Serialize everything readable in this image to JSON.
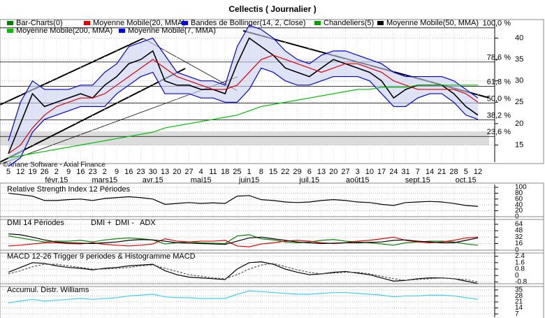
{
  "header": {
    "title": "Cellectis  ( Journalier )",
    "copyright": "©Ariane Software - Axial Finance"
  },
  "chart_data": [
    {
      "type": "line",
      "panel": "price",
      "categories": [
        "5",
        "12",
        "19",
        "26",
        "2",
        "9",
        "16",
        "23",
        "2",
        "9",
        "16",
        "23",
        "30",
        "13",
        "20",
        "27",
        "4",
        "11",
        "18",
        "25",
        "1",
        "8",
        "15",
        "22",
        "29",
        "6",
        "13",
        "20",
        "27",
        "3",
        "10",
        "17",
        "24",
        "31",
        "7",
        "14",
        "21",
        "28",
        "5",
        "12"
      ],
      "month_labels": [
        {
          "label": "févr.15",
          "category": 4
        },
        {
          "label": "mars15",
          "category": 8
        },
        {
          "label": "avr.15",
          "category": 12
        },
        {
          "label": "mai15",
          "category": 16
        },
        {
          "label": "juin15",
          "category": 20
        },
        {
          "label": "juil.15",
          "category": 25
        },
        {
          "label": "août15",
          "category": 29
        },
        {
          "label": "sept.15",
          "category": 34
        },
        {
          "label": "oct.15",
          "category": 38
        }
      ],
      "ylim": [
        11,
        44
      ],
      "yticks": [
        15,
        20,
        25,
        30,
        35,
        40
      ],
      "levels": [
        {
          "label": "100,0 %",
          "level": 42.4
        },
        {
          "label": "78,6 %",
          "level": 34.4
        },
        {
          "label": "61,8 %",
          "level": 28.7
        },
        {
          "label": "50,0 %",
          "level": 24.8
        },
        {
          "label": "38,2 %",
          "level": 20.9
        },
        {
          "label": "23,6 %",
          "level": 17.0
        }
      ],
      "series": [
        {
          "name": "Bar-Charts(0)",
          "color": "#008000",
          "values": [
            13,
            20,
            27,
            24,
            25,
            26,
            27,
            26,
            29,
            31,
            34,
            35,
            37,
            30,
            29,
            29,
            28,
            28,
            27,
            34,
            40,
            38,
            36,
            33,
            32,
            31,
            33,
            35,
            34,
            33,
            32,
            30,
            26,
            28,
            29,
            29,
            29,
            27,
            24,
            22
          ]
        },
        {
          "name": "Moyenne Mobile(20, MMA)",
          "color": "#e00000",
          "values": [
            13,
            15,
            19,
            22,
            24,
            25,
            26,
            26,
            27,
            29,
            31,
            33,
            35,
            33,
            31,
            30,
            29,
            28,
            28,
            29,
            32,
            35,
            36,
            35,
            34,
            33,
            32,
            33,
            34,
            34,
            33,
            32,
            30,
            29,
            28,
            28,
            28,
            28,
            27,
            25
          ]
        },
        {
          "name": "Bandes de Bollinger(14, 2, Close)",
          "color": "#0000e0",
          "upper": [
            16,
            25,
            30,
            28,
            28,
            28,
            29,
            29,
            32,
            34,
            38,
            39,
            40,
            36,
            32,
            31,
            30,
            30,
            29,
            38,
            43,
            42,
            40,
            37,
            35,
            34,
            36,
            37,
            37,
            36,
            35,
            34,
            32,
            31,
            31,
            31,
            31,
            30,
            28,
            26
          ],
          "lower": [
            10,
            12,
            18,
            21,
            22,
            23,
            24,
            24,
            24,
            27,
            29,
            31,
            32,
            27,
            27,
            27,
            26,
            26,
            25,
            25,
            28,
            33,
            32,
            30,
            29,
            29,
            30,
            31,
            31,
            31,
            30,
            27,
            24,
            24,
            26,
            27,
            27,
            25,
            22,
            21
          ]
        },
        {
          "name": "Chandeliers(5)",
          "color": "#00a000"
        },
        {
          "name": "Moyenne Mobile(50, MMA)",
          "color": "#000000"
        },
        {
          "name": "Moyenne Mobile(200, MMA)",
          "color": "#00c000",
          "values": [
            12,
            12.5,
            13,
            13.5,
            14,
            14.5,
            15,
            15.5,
            16,
            16.5,
            17,
            17.5,
            18,
            19,
            19.5,
            20,
            20.5,
            21,
            21.5,
            22,
            23,
            24,
            24.5,
            25,
            25.5,
            26,
            26.5,
            27,
            27.5,
            28,
            28,
            28.5,
            28.5,
            28.5,
            29,
            29,
            29,
            29,
            29,
            29
          ]
        },
        {
          "name": "Moyenne Mobile(7, MMA)",
          "color": "#0000ff"
        }
      ]
    },
    {
      "type": "line",
      "panel": "rsi",
      "title": "Relative Strength Index 12 Périodes",
      "ylim": [
        -5,
        105
      ],
      "yticks": [
        100,
        80,
        60,
        40,
        20,
        0
      ],
      "series": [
        {
          "color": "#000000",
          "values": [
            80,
            75,
            70,
            55,
            55,
            58,
            60,
            55,
            62,
            65,
            68,
            65,
            60,
            42,
            45,
            48,
            45,
            47,
            45,
            70,
            72,
            58,
            55,
            50,
            48,
            50,
            55,
            58,
            55,
            50,
            48,
            42,
            38,
            48,
            50,
            52,
            50,
            45,
            38,
            35
          ]
        }
      ]
    },
    {
      "type": "line",
      "panel": "dmi",
      "title": "DMI 14 Périodes",
      "ylim": [
        -4,
        76
      ],
      "yticks": [
        64,
        48,
        32,
        16,
        0
      ],
      "series": [
        {
          "name": "DMI +",
          "color": "#008000",
          "values": [
            35,
            30,
            25,
            20,
            22,
            22,
            24,
            20,
            25,
            28,
            30,
            28,
            25,
            15,
            18,
            20,
            18,
            17,
            16,
            35,
            38,
            28,
            25,
            20,
            18,
            20,
            24,
            26,
            22,
            20,
            18,
            15,
            12,
            18,
            20,
            22,
            22,
            20,
            15,
            12
          ]
        },
        {
          "name": "DMI -",
          "color": "#e00000",
          "values": [
            10,
            12,
            15,
            18,
            18,
            16,
            15,
            18,
            14,
            12,
            10,
            12,
            15,
            28,
            22,
            20,
            22,
            22,
            24,
            10,
            8,
            15,
            18,
            22,
            24,
            22,
            18,
            16,
            18,
            22,
            24,
            28,
            32,
            24,
            20,
            18,
            20,
            24,
            30,
            32
          ]
        },
        {
          "name": "ADX",
          "color": "#000000",
          "values": [
            40,
            38,
            32,
            25,
            20,
            18,
            17,
            16,
            18,
            20,
            24,
            26,
            25,
            22,
            18,
            17,
            16,
            15,
            14,
            22,
            30,
            32,
            28,
            24,
            20,
            18,
            16,
            17,
            18,
            18,
            19,
            20,
            24,
            25,
            22,
            20,
            18,
            18,
            24,
            30
          ]
        }
      ]
    },
    {
      "type": "line",
      "panel": "macd",
      "title": "MACD 12-26   Trigger 9 periodes & Histogramme MACD",
      "ylim": [
        -1.2,
        2.8
      ],
      "yticks": [
        2.4,
        1.6,
        0.8,
        0,
        -0.8
      ],
      "series": [
        {
          "color": "#000000",
          "values": [
            0.4,
            1.0,
            1.6,
            1.5,
            1.2,
            1.0,
            0.9,
            0.7,
            0.9,
            1.0,
            1.2,
            1.3,
            1.4,
            0.6,
            0.1,
            -0.2,
            -0.3,
            -0.4,
            -0.5,
            0.8,
            1.6,
            1.7,
            1.4,
            0.8,
            0.4,
            0.1,
            0.2,
            0.4,
            0.5,
            0.3,
            0.1,
            -0.3,
            -0.7,
            -0.6,
            -0.4,
            -0.3,
            -0.3,
            -0.4,
            -0.7,
            -1.0
          ]
        },
        {
          "color": "#555555",
          "dashed": true,
          "values": [
            0.2,
            0.6,
            1.1,
            1.4,
            1.4,
            1.2,
            1.0,
            0.8,
            0.8,
            0.9,
            1.0,
            1.2,
            1.3,
            0.9,
            0.5,
            0.1,
            -0.1,
            -0.3,
            -0.4,
            0.1,
            0.8,
            1.3,
            1.5,
            1.1,
            0.7,
            0.4,
            0.2,
            0.3,
            0.4,
            0.4,
            0.2,
            -0.1,
            -0.4,
            -0.6,
            -0.5,
            -0.4,
            -0.3,
            -0.4,
            -0.5,
            -0.8
          ]
        }
      ]
    },
    {
      "type": "line",
      "panel": "williams",
      "title": "Accumul. Distr. Williams",
      "ylim": [
        3,
        39
      ],
      "yticks": [
        35,
        28,
        21,
        14,
        7
      ],
      "series": [
        {
          "color": "#40d0f0",
          "values": [
            20,
            22,
            24,
            22,
            23,
            24,
            25,
            24,
            25,
            26,
            28,
            29,
            30,
            27,
            26,
            26,
            25,
            25,
            25,
            30,
            34,
            33,
            32,
            31,
            30,
            30,
            31,
            32,
            32,
            31,
            30,
            29,
            27,
            28,
            28,
            29,
            29,
            28,
            26,
            24
          ]
        }
      ]
    }
  ]
}
